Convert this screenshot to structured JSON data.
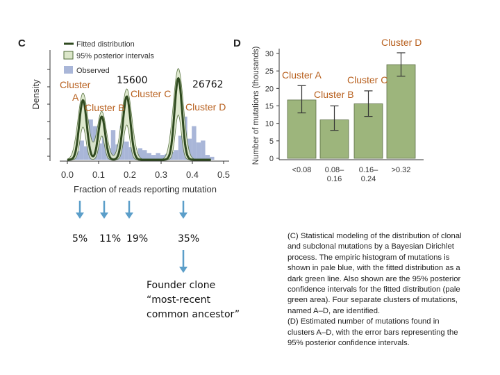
{
  "chart_data": [
    {
      "panel": "C",
      "type": "line",
      "xlabel": "Fraction of reads reporting mutation",
      "ylabel": "Density",
      "x_ticks": [
        "0.0",
        "0.1",
        "0.2",
        "0.3",
        "0.4",
        "0.5"
      ],
      "xlim": [
        0.0,
        0.5
      ],
      "legend": [
        "Fitted distribution",
        "95% posterior intervals",
        "Observed"
      ],
      "legend_position": "top-left",
      "series": [
        {
          "name": "Fitted distribution",
          "peaks": [
            {
              "x": 0.05,
              "height": 0.62,
              "width": 0.012
            },
            {
              "x": 0.11,
              "height": 0.45,
              "width": 0.011
            },
            {
              "x": 0.19,
              "height": 0.66,
              "width": 0.012
            },
            {
              "x": 0.355,
              "height": 0.85,
              "width": 0.012
            }
          ]
        }
      ],
      "observed_bins": [
        0.02,
        0.09,
        0.2,
        0.14,
        0.42,
        0.35,
        0.17,
        0.26,
        0.12,
        0.31,
        0.16,
        0.35,
        0.19,
        0.13,
        0.08,
        0.12,
        0.1,
        0.07,
        0.05,
        0.07,
        0.05,
        0.06,
        0.08,
        0.1,
        0.25,
        0.45,
        0.22,
        0.35,
        0.18,
        0.2,
        0.05,
        0.03
      ],
      "cluster_labels": [
        {
          "text": "Cluster A",
          "x": 0.05
        },
        {
          "text": "Cluster B",
          "x": 0.11
        },
        {
          "text": "Cluster C",
          "x": 0.19
        },
        {
          "text": "Cluster D",
          "x": 0.355
        }
      ]
    },
    {
      "panel": "D",
      "type": "bar",
      "ylabel": "Number of mutations (thousands)",
      "ylim": [
        0,
        30
      ],
      "y_ticks": [
        0,
        5,
        10,
        15,
        20,
        25,
        30
      ],
      "categories": [
        "<0.08",
        "0.08–0.16",
        "0.16–0.24",
        ">0.32"
      ],
      "values": [
        16.7,
        11,
        15.6,
        26.8
      ],
      "error_low": [
        13,
        8,
        12,
        23.5
      ],
      "error_high": [
        20.8,
        15,
        19.3,
        30.2
      ],
      "bar_labels": [
        "Cluster A",
        "Cluster B",
        "Cluster C",
        "Cluster D"
      ],
      "bar_color": "#9db57c"
    }
  ],
  "annotations": {
    "value_left": "15600",
    "value_right": "26762",
    "percentages": [
      "5%",
      "11%",
      "19%",
      "35%"
    ],
    "founder_line1": "Founder clone",
    "founder_line2": "“most-recent",
    "founder_line3": "common ancestor”"
  },
  "caption": {
    "lines": [
      "(C) Statistical modeling of the distribution of clonal",
      "and subclonal mutations by a Bayesian Dirichlet",
      "process. The empiric histogram of mutations is",
      "shown in pale blue, with the fitted distribution as a",
      "dark green line. Also shown are the 95% posterior",
      "confidence intervals for the fitted distribution (pale",
      "green area). Four separate clusters of mutations,",
      "named A–D, are identified.",
      "(D) Estimated number of mutations found in",
      "clusters A–D, with the error bars representing the",
      "95% posterior confidence intervals."
    ]
  },
  "panel_letters": {
    "c": "C",
    "d": "D"
  },
  "colors": {
    "fitted": "#2f4a1f",
    "interval_fill": "#dbe6c9",
    "observed": "#a9b6d8",
    "cluster_label": "#b8601e",
    "arrow": "#5b9ec9",
    "bar_fill": "#9db57c"
  }
}
